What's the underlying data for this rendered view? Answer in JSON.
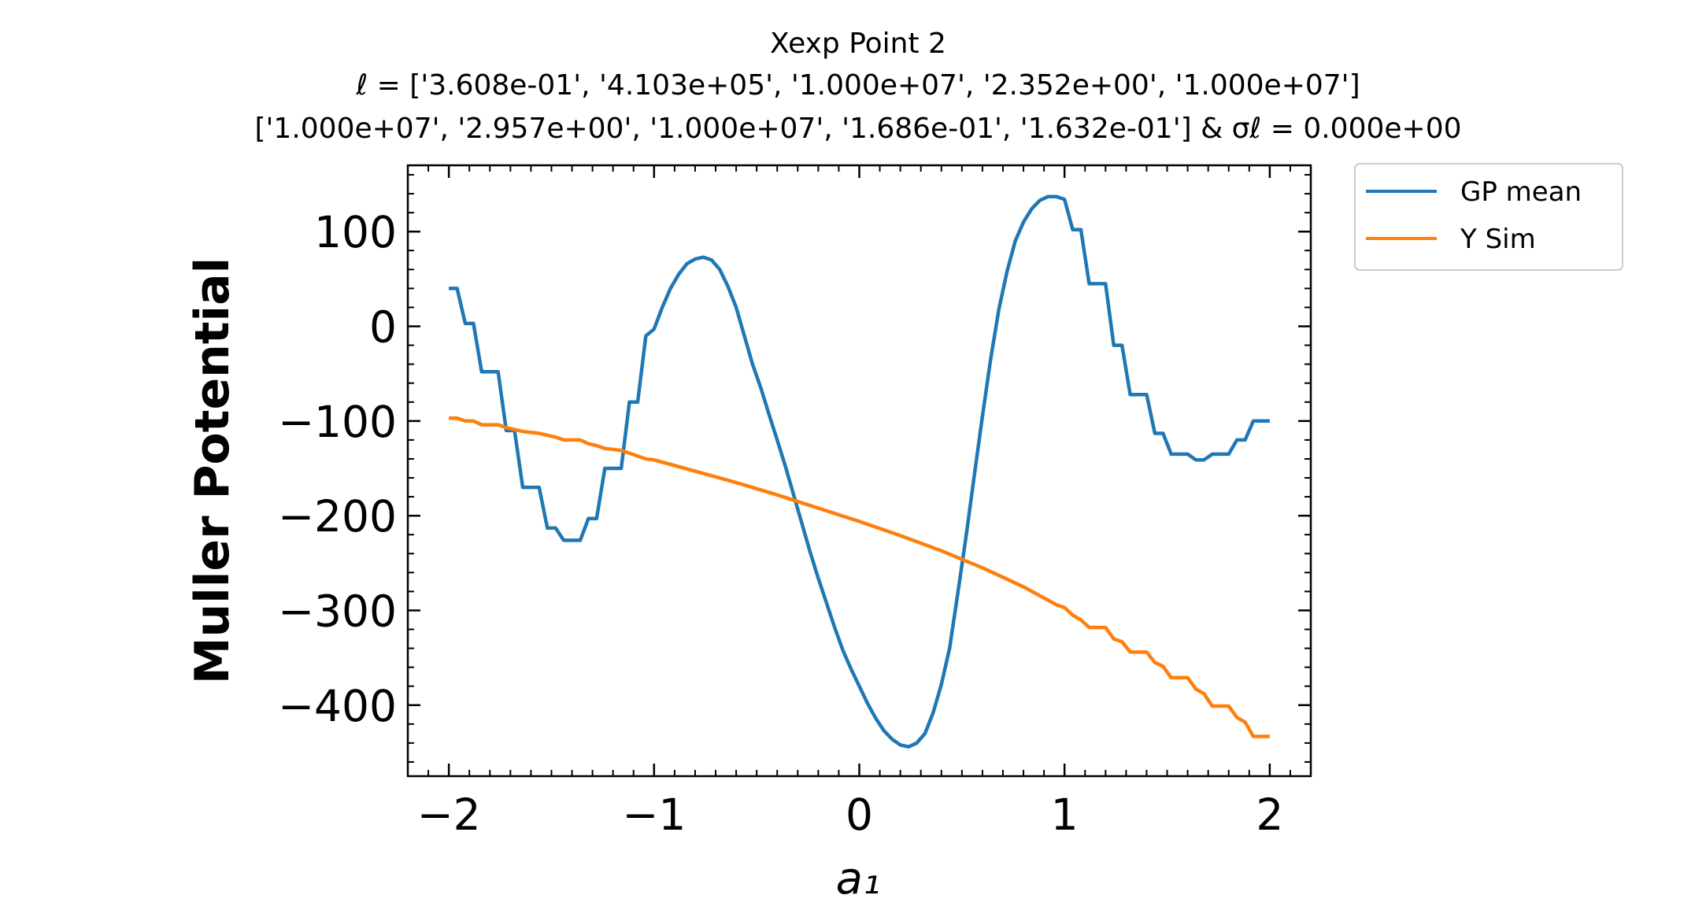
{
  "chart_data": {
    "type": "line",
    "title_lines": [
      "Xexp Point 2",
      "ℓ = ['3.608e-01', '4.103e+05', '1.000e+07', '2.352e+00', '1.000e+07']",
      "['1.000e+07', '2.957e+00', '1.000e+07', '1.686e-01', '1.632e-01'] & σℓ = 0.000e+00"
    ],
    "xlabel": "a₁",
    "ylabel": "Muller Potential",
    "xlim": [
      -2.2,
      2.2
    ],
    "ylim": [
      -475,
      170
    ],
    "x_ticks": [
      -2,
      -1,
      0,
      1,
      2
    ],
    "x_tick_labels": [
      "−2",
      "−1",
      "0",
      "1",
      "2"
    ],
    "y_ticks": [
      100,
      0,
      -100,
      -200,
      -300,
      -400
    ],
    "y_tick_labels": [
      "100",
      "0",
      "−100",
      "−200",
      "−300",
      "−400"
    ],
    "legend_position": "outside-top-right",
    "series": [
      {
        "name": "GP mean",
        "color": "#1f77b4",
        "points": [
          [
            -2.0,
            40
          ],
          [
            -1.96,
            40
          ],
          [
            -1.92,
            3
          ],
          [
            -1.88,
            3
          ],
          [
            -1.84,
            -48
          ],
          [
            -1.76,
            -48
          ],
          [
            -1.72,
            -110
          ],
          [
            -1.68,
            -110
          ],
          [
            -1.64,
            -170
          ],
          [
            -1.56,
            -170
          ],
          [
            -1.52,
            -213
          ],
          [
            -1.48,
            -213
          ],
          [
            -1.44,
            -226
          ],
          [
            -1.36,
            -226
          ],
          [
            -1.32,
            -203
          ],
          [
            -1.28,
            -203
          ],
          [
            -1.24,
            -150
          ],
          [
            -1.16,
            -150
          ],
          [
            -1.12,
            -80
          ],
          [
            -1.08,
            -80
          ],
          [
            -1.04,
            -10
          ],
          [
            -1.0,
            -3
          ],
          [
            -0.96,
            20
          ],
          [
            -0.92,
            40
          ],
          [
            -0.88,
            55
          ],
          [
            -0.84,
            66
          ],
          [
            -0.8,
            71
          ],
          [
            -0.76,
            73
          ],
          [
            -0.72,
            70
          ],
          [
            -0.68,
            60
          ],
          [
            -0.64,
            42
          ],
          [
            -0.6,
            20
          ],
          [
            -0.56,
            -10
          ],
          [
            -0.52,
            -40
          ],
          [
            -0.48,
            -65
          ],
          [
            -0.44,
            -93
          ],
          [
            -0.4,
            -120
          ],
          [
            -0.36,
            -148
          ],
          [
            -0.32,
            -178
          ],
          [
            -0.28,
            -208
          ],
          [
            -0.24,
            -238
          ],
          [
            -0.2,
            -266
          ],
          [
            -0.16,
            -292
          ],
          [
            -0.12,
            -318
          ],
          [
            -0.08,
            -342
          ],
          [
            -0.04,
            -362
          ],
          [
            0.0,
            -380
          ],
          [
            0.04,
            -398
          ],
          [
            0.08,
            -414
          ],
          [
            0.12,
            -427
          ],
          [
            0.16,
            -436
          ],
          [
            0.2,
            -442
          ],
          [
            0.24,
            -444
          ],
          [
            0.28,
            -440
          ],
          [
            0.32,
            -430
          ],
          [
            0.36,
            -408
          ],
          [
            0.4,
            -378
          ],
          [
            0.44,
            -340
          ],
          [
            0.48,
            -282
          ],
          [
            0.52,
            -222
          ],
          [
            0.56,
            -158
          ],
          [
            0.6,
            -95
          ],
          [
            0.64,
            -35
          ],
          [
            0.68,
            18
          ],
          [
            0.72,
            58
          ],
          [
            0.76,
            90
          ],
          [
            0.8,
            110
          ],
          [
            0.84,
            124
          ],
          [
            0.88,
            133
          ],
          [
            0.92,
            137
          ],
          [
            0.96,
            137
          ],
          [
            1.0,
            134
          ],
          [
            1.04,
            102
          ],
          [
            1.08,
            102
          ],
          [
            1.12,
            45
          ],
          [
            1.2,
            45
          ],
          [
            1.24,
            -20
          ],
          [
            1.28,
            -20
          ],
          [
            1.32,
            -72
          ],
          [
            1.4,
            -72
          ],
          [
            1.44,
            -113
          ],
          [
            1.48,
            -113
          ],
          [
            1.52,
            -135
          ],
          [
            1.6,
            -135
          ],
          [
            1.64,
            -141
          ],
          [
            1.68,
            -141
          ],
          [
            1.72,
            -135
          ],
          [
            1.8,
            -135
          ],
          [
            1.84,
            -120
          ],
          [
            1.88,
            -120
          ],
          [
            1.92,
            -100
          ],
          [
            2.0,
            -100
          ]
        ]
      },
      {
        "name": "Y Sim",
        "color": "#ff7f0e",
        "points": [
          [
            -2.0,
            -97
          ],
          [
            -1.96,
            -97
          ],
          [
            -1.92,
            -100
          ],
          [
            -1.88,
            -100
          ],
          [
            -1.84,
            -104
          ],
          [
            -1.76,
            -104
          ],
          [
            -1.72,
            -107
          ],
          [
            -1.68,
            -109
          ],
          [
            -1.64,
            -111
          ],
          [
            -1.56,
            -113
          ],
          [
            -1.52,
            -115
          ],
          [
            -1.48,
            -117
          ],
          [
            -1.44,
            -120
          ],
          [
            -1.36,
            -120
          ],
          [
            -1.32,
            -124
          ],
          [
            -1.28,
            -126
          ],
          [
            -1.24,
            -129
          ],
          [
            -1.16,
            -131
          ],
          [
            -1.12,
            -134
          ],
          [
            -1.08,
            -137
          ],
          [
            -1.04,
            -140
          ],
          [
            -1.0,
            -141
          ],
          [
            -0.8,
            -153
          ],
          [
            -0.6,
            -165
          ],
          [
            -0.4,
            -178
          ],
          [
            -0.2,
            -192
          ],
          [
            0.0,
            -206
          ],
          [
            0.2,
            -221
          ],
          [
            0.4,
            -237
          ],
          [
            0.6,
            -255
          ],
          [
            0.8,
            -275
          ],
          [
            0.96,
            -294
          ],
          [
            1.0,
            -297
          ],
          [
            1.04,
            -305
          ],
          [
            1.08,
            -310
          ],
          [
            1.12,
            -318
          ],
          [
            1.2,
            -318
          ],
          [
            1.24,
            -330
          ],
          [
            1.28,
            -333
          ],
          [
            1.32,
            -344
          ],
          [
            1.4,
            -344
          ],
          [
            1.44,
            -355
          ],
          [
            1.48,
            -359
          ],
          [
            1.52,
            -371
          ],
          [
            1.6,
            -371
          ],
          [
            1.64,
            -383
          ],
          [
            1.68,
            -388
          ],
          [
            1.72,
            -401
          ],
          [
            1.8,
            -401
          ],
          [
            1.84,
            -413
          ],
          [
            1.88,
            -418
          ],
          [
            1.92,
            -433
          ],
          [
            2.0,
            -433
          ]
        ]
      }
    ]
  }
}
